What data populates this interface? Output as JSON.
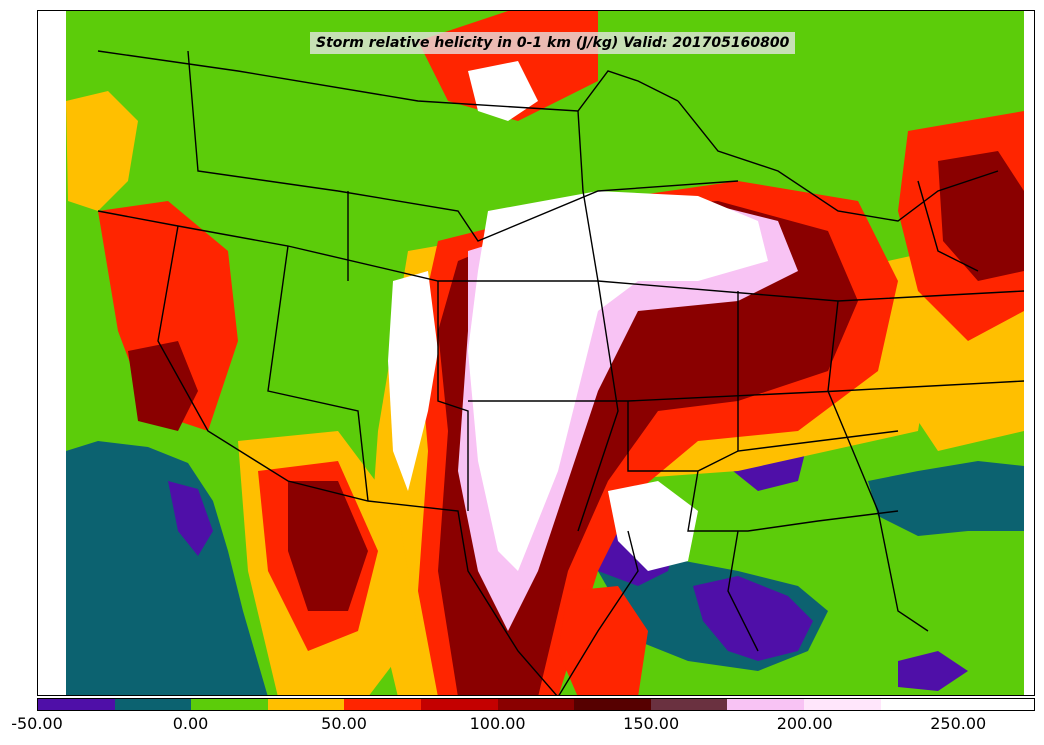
{
  "title": "Storm relative helicity in 0-1 km (J/kg) Valid: 201705160800",
  "colorbar": {
    "min": -50,
    "max": 275,
    "step": 25,
    "colors": [
      "#4f0fa8",
      "#0c6270",
      "#5ccc0a",
      "#ffbf00",
      "#ff2500",
      "#c40000",
      "#8a0000",
      "#560000",
      "#6a3140",
      "#f8c3f4",
      "#ffe6fb",
      "#ffffff",
      "#ffffff"
    ],
    "tick_labels": [
      "-50.00",
      "0.00",
      "50.00",
      "100.00",
      "150.00",
      "200.00",
      "250.00"
    ],
    "tick_values": [
      -50,
      0,
      50,
      100,
      150,
      200,
      250
    ]
  },
  "map": {
    "projection": "Lambert conformal, CONUS",
    "overlay": "state and national borders",
    "colors": {
      "background": "#5ccc0a",
      "negative": "#4f0fa8",
      "near_zero": "#0c6270",
      "moderate": "#ffbf00",
      "high": "#ff2500",
      "very_high": "#8a0000",
      "extreme": "#ffffff"
    }
  }
}
